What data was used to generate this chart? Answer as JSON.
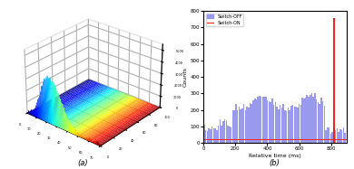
{
  "fig_width": 3.9,
  "fig_height": 1.87,
  "dpi": 100,
  "subplot_a": {
    "elev": 28,
    "azim": -50,
    "label": "(a)"
  },
  "subplot_b": {
    "x_label": "Relative time (ms)",
    "y_label": "Counts",
    "y_max": 800,
    "x_max": 900,
    "x_ticks": [
      0,
      200,
      400,
      600,
      800
    ],
    "y_ticks": [
      0,
      100,
      200,
      300,
      400,
      500,
      600,
      700,
      800
    ],
    "bar_color": "#9999ee",
    "spike_color": "#ee2222",
    "switch_off_line_color": "#9999ee",
    "switch_on_line_color": "#ee2222",
    "spike_x": 820,
    "spike_height": 750,
    "legend_switch_off": "Switch-OFF",
    "legend_switch_on": "Switch-ON",
    "label": "(b)"
  },
  "background_color": "#ffffff"
}
